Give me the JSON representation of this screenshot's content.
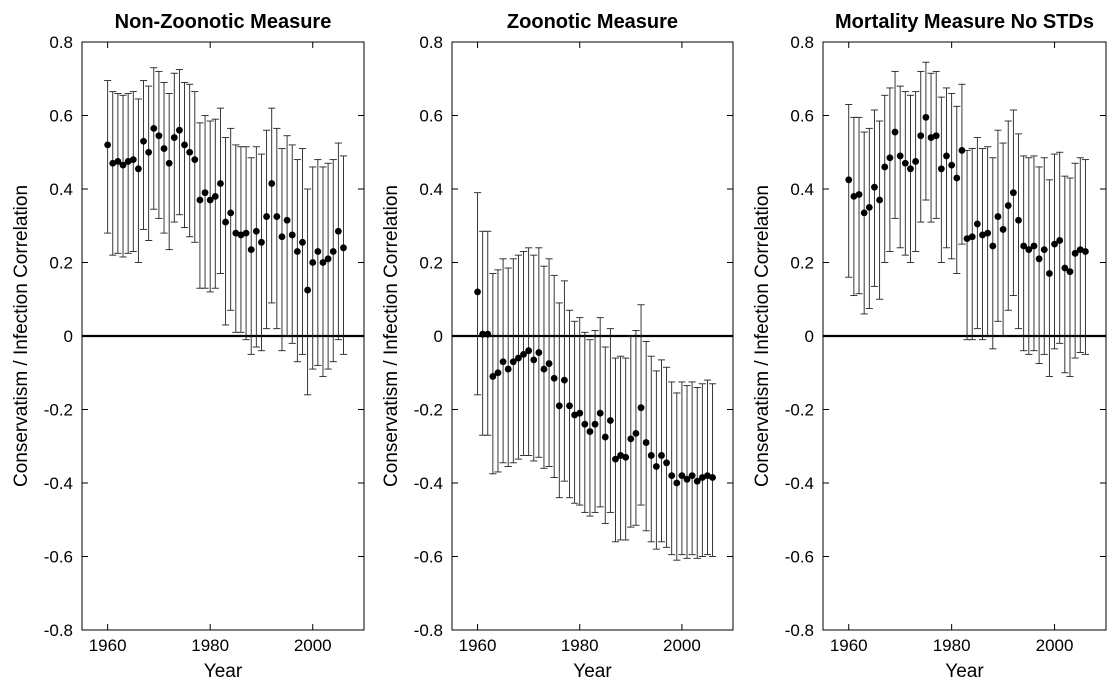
{
  "figure": {
    "panel_count": 3
  },
  "chart_data": [
    {
      "type": "scatter",
      "title": "Non-Zoonotic Measure",
      "xlabel": "Year",
      "ylabel": "Conservatism / Infection Correlation",
      "xlim": [
        1955,
        2010
      ],
      "ylim": [
        -0.8,
        0.8
      ],
      "xticks": [
        1960,
        1980,
        2000
      ],
      "yticks": [
        -0.8,
        -0.6,
        -0.4,
        -0.2,
        0,
        0.2,
        0.4,
        0.6,
        0.8
      ],
      "reference_line_y": 0,
      "error_bars": true,
      "x": [
        1960,
        1961,
        1962,
        1963,
        1964,
        1965,
        1966,
        1967,
        1968,
        1969,
        1970,
        1971,
        1972,
        1973,
        1974,
        1975,
        1976,
        1977,
        1978,
        1979,
        1980,
        1981,
        1982,
        1983,
        1984,
        1985,
        1986,
        1987,
        1988,
        1989,
        1990,
        1991,
        1992,
        1993,
        1994,
        1995,
        1996,
        1997,
        1998,
        1999,
        2000,
        2001,
        2002,
        2003,
        2004,
        2005,
        2006
      ],
      "y": [
        0.52,
        0.47,
        0.475,
        0.465,
        0.475,
        0.48,
        0.455,
        0.53,
        0.5,
        0.565,
        0.545,
        0.51,
        0.47,
        0.54,
        0.56,
        0.52,
        0.5,
        0.48,
        0.37,
        0.39,
        0.37,
        0.38,
        0.415,
        0.31,
        0.335,
        0.28,
        0.275,
        0.28,
        0.235,
        0.285,
        0.255,
        0.325,
        0.415,
        0.325,
        0.27,
        0.315,
        0.275,
        0.23,
        0.255,
        0.125,
        0.2,
        0.23,
        0.2,
        0.21,
        0.23,
        0.285,
        0.24
      ],
      "lower": [
        0.28,
        0.22,
        0.225,
        0.215,
        0.225,
        0.23,
        0.2,
        0.29,
        0.26,
        0.345,
        0.32,
        0.28,
        0.235,
        0.31,
        0.33,
        0.295,
        0.27,
        0.255,
        0.13,
        0.13,
        0.12,
        0.13,
        0.17,
        0.03,
        0.07,
        0.01,
        0.01,
        -0.01,
        -0.05,
        -0.03,
        -0.04,
        0.02,
        0.09,
        0.02,
        -0.04,
        0.0,
        -0.02,
        -0.07,
        -0.05,
        -0.16,
        -0.09,
        -0.08,
        -0.11,
        -0.09,
        -0.07,
        -0.01,
        -0.05
      ],
      "upper": [
        0.695,
        0.665,
        0.66,
        0.655,
        0.66,
        0.665,
        0.645,
        0.695,
        0.68,
        0.73,
        0.72,
        0.69,
        0.66,
        0.715,
        0.725,
        0.69,
        0.685,
        0.665,
        0.58,
        0.6,
        0.585,
        0.59,
        0.62,
        0.54,
        0.565,
        0.52,
        0.515,
        0.515,
        0.485,
        0.515,
        0.495,
        0.56,
        0.62,
        0.565,
        0.51,
        0.545,
        0.52,
        0.48,
        0.51,
        0.4,
        0.46,
        0.48,
        0.46,
        0.47,
        0.48,
        0.525,
        0.49
      ]
    },
    {
      "type": "scatter",
      "title": "Zoonotic Measure",
      "xlabel": "Year",
      "ylabel": "Conservatism / Infection Correlation",
      "xlim": [
        1955,
        2010
      ],
      "ylim": [
        -0.8,
        0.8
      ],
      "xticks": [
        1960,
        1980,
        2000
      ],
      "yticks": [
        -0.8,
        -0.6,
        -0.4,
        -0.2,
        0,
        0.2,
        0.4,
        0.6,
        0.8
      ],
      "reference_line_y": 0,
      "error_bars": true,
      "x": [
        1960,
        1961,
        1962,
        1963,
        1964,
        1965,
        1966,
        1967,
        1968,
        1969,
        1970,
        1971,
        1972,
        1973,
        1974,
        1975,
        1976,
        1977,
        1978,
        1979,
        1980,
        1981,
        1982,
        1983,
        1984,
        1985,
        1986,
        1987,
        1988,
        1989,
        1990,
        1991,
        1992,
        1993,
        1994,
        1995,
        1996,
        1997,
        1998,
        1999,
        2000,
        2001,
        2002,
        2003,
        2004,
        2005,
        2006
      ],
      "y": [
        0.12,
        0.005,
        0.005,
        -0.11,
        -0.1,
        -0.07,
        -0.09,
        -0.07,
        -0.06,
        -0.05,
        -0.04,
        -0.065,
        -0.045,
        -0.09,
        -0.075,
        -0.115,
        -0.19,
        -0.12,
        -0.19,
        -0.215,
        -0.21,
        -0.24,
        -0.26,
        -0.24,
        -0.21,
        -0.275,
        -0.23,
        -0.335,
        -0.325,
        -0.33,
        -0.28,
        -0.265,
        -0.195,
        -0.29,
        -0.325,
        -0.355,
        -0.325,
        -0.345,
        -0.38,
        -0.4,
        -0.38,
        -0.39,
        -0.38,
        -0.395,
        -0.385,
        -0.38,
        -0.385
      ],
      "lower": [
        -0.16,
        -0.27,
        -0.27,
        -0.375,
        -0.37,
        -0.345,
        -0.355,
        -0.345,
        -0.335,
        -0.325,
        -0.325,
        -0.34,
        -0.33,
        -0.36,
        -0.355,
        -0.385,
        -0.44,
        -0.395,
        -0.44,
        -0.455,
        -0.46,
        -0.48,
        -0.49,
        -0.48,
        -0.465,
        -0.51,
        -0.48,
        -0.56,
        -0.555,
        -0.555,
        -0.52,
        -0.515,
        -0.46,
        -0.53,
        -0.56,
        -0.58,
        -0.56,
        -0.575,
        -0.595,
        -0.61,
        -0.595,
        -0.605,
        -0.595,
        -0.605,
        -0.6,
        -0.595,
        -0.6
      ],
      "upper": [
        0.39,
        0.285,
        0.285,
        0.17,
        0.18,
        0.21,
        0.185,
        0.21,
        0.22,
        0.23,
        0.24,
        0.22,
        0.24,
        0.19,
        0.21,
        0.165,
        0.09,
        0.15,
        0.07,
        0.04,
        0.05,
        0.01,
        -0.01,
        0.015,
        0.05,
        -0.03,
        0.02,
        -0.06,
        -0.055,
        -0.06,
        0.0,
        0.015,
        0.085,
        -0.015,
        -0.055,
        -0.095,
        -0.065,
        -0.085,
        -0.125,
        -0.155,
        -0.125,
        -0.135,
        -0.125,
        -0.14,
        -0.13,
        -0.12,
        -0.13
      ]
    },
    {
      "type": "scatter",
      "title": "Mortality Measure No STDs",
      "xlabel": "Year",
      "ylabel": "Conservatism / Infection Correlation",
      "xlim": [
        1955,
        2010
      ],
      "ylim": [
        -0.8,
        0.8
      ],
      "xticks": [
        1960,
        1980,
        2000
      ],
      "yticks": [
        -0.8,
        -0.6,
        -0.4,
        -0.2,
        0,
        0.2,
        0.4,
        0.6,
        0.8
      ],
      "reference_line_y": 0,
      "error_bars": true,
      "x": [
        1960,
        1961,
        1962,
        1963,
        1964,
        1965,
        1966,
        1967,
        1968,
        1969,
        1970,
        1971,
        1972,
        1973,
        1974,
        1975,
        1976,
        1977,
        1978,
        1979,
        1980,
        1981,
        1982,
        1983,
        1984,
        1985,
        1986,
        1987,
        1988,
        1989,
        1990,
        1991,
        1992,
        1993,
        1994,
        1995,
        1996,
        1997,
        1998,
        1999,
        2000,
        2001,
        2002,
        2003,
        2004,
        2005,
        2006
      ],
      "y": [
        0.425,
        0.38,
        0.385,
        0.335,
        0.35,
        0.405,
        0.37,
        0.46,
        0.485,
        0.555,
        0.49,
        0.47,
        0.455,
        0.475,
        0.545,
        0.595,
        0.54,
        0.545,
        0.455,
        0.49,
        0.465,
        0.43,
        0.505,
        0.265,
        0.27,
        0.305,
        0.275,
        0.28,
        0.245,
        0.325,
        0.29,
        0.355,
        0.39,
        0.315,
        0.245,
        0.235,
        0.245,
        0.21,
        0.235,
        0.17,
        0.25,
        0.26,
        0.185,
        0.175,
        0.225,
        0.235,
        0.23
      ],
      "lower": [
        0.16,
        0.11,
        0.115,
        0.06,
        0.075,
        0.135,
        0.1,
        0.2,
        0.23,
        0.32,
        0.24,
        0.22,
        0.2,
        0.23,
        0.31,
        0.37,
        0.31,
        0.32,
        0.2,
        0.24,
        0.21,
        0.17,
        0.25,
        -0.01,
        -0.01,
        0.02,
        -0.01,
        0.0,
        -0.035,
        0.04,
        0.0,
        0.07,
        0.11,
        0.02,
        -0.04,
        -0.05,
        -0.04,
        -0.075,
        -0.05,
        -0.11,
        -0.035,
        -0.02,
        -0.1,
        -0.11,
        -0.06,
        -0.045,
        -0.05
      ],
      "upper": [
        0.63,
        0.595,
        0.595,
        0.555,
        0.565,
        0.615,
        0.585,
        0.655,
        0.675,
        0.72,
        0.68,
        0.665,
        0.655,
        0.665,
        0.72,
        0.745,
        0.715,
        0.72,
        0.65,
        0.675,
        0.66,
        0.625,
        0.685,
        0.505,
        0.51,
        0.54,
        0.51,
        0.515,
        0.485,
        0.56,
        0.525,
        0.585,
        0.615,
        0.55,
        0.49,
        0.485,
        0.49,
        0.46,
        0.485,
        0.425,
        0.495,
        0.5,
        0.435,
        0.43,
        0.47,
        0.485,
        0.48
      ]
    }
  ]
}
